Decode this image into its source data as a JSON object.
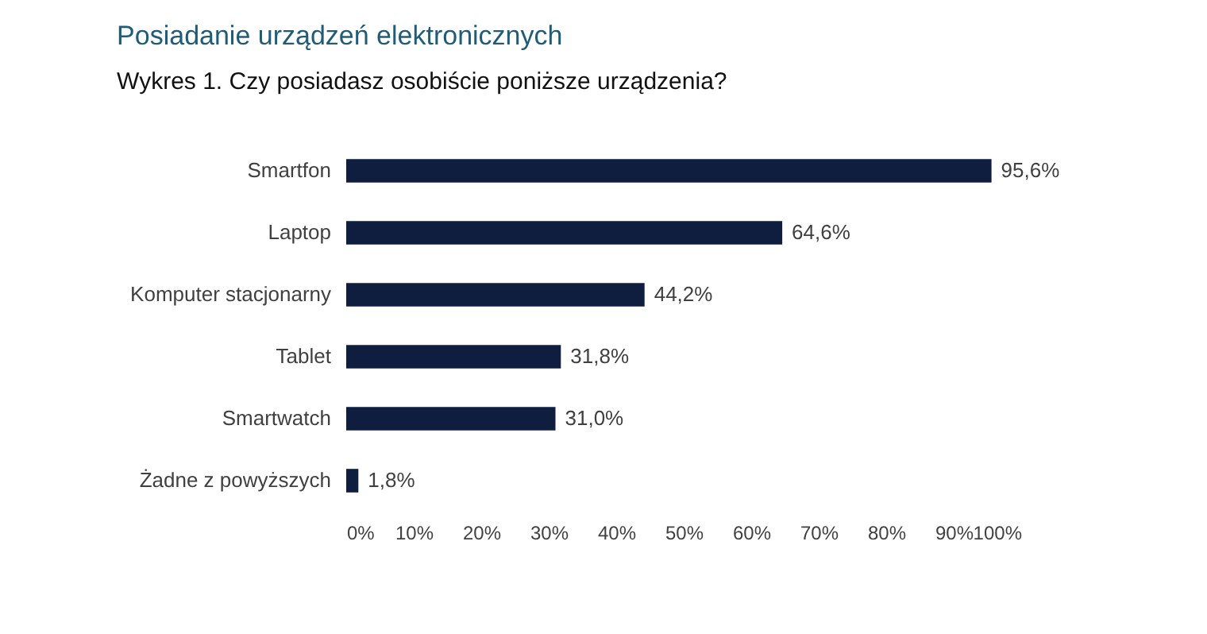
{
  "chart_data": {
    "type": "bar",
    "orientation": "horizontal",
    "title": "Posiadanie urządzeń elektronicznych",
    "subtitle": "Wykres 1. Czy posiadasz osobiście poniższe urządzenia?",
    "categories": [
      "Smartfon",
      "Laptop",
      "Komputer stacjonarny",
      "Tablet",
      "Smartwatch",
      "Żadne z powyższych"
    ],
    "values": [
      95.6,
      64.6,
      44.2,
      31.8,
      31.0,
      1.8
    ],
    "value_labels": [
      "95,6%",
      "64,6%",
      "44,2%",
      "31,8%",
      "31,0%",
      "1,8%"
    ],
    "color": "#0f1d3f",
    "xlim": [
      0,
      100
    ],
    "xticks": [
      {
        "value": 0,
        "label": "0%"
      },
      {
        "value": 10,
        "label": "10%"
      },
      {
        "value": 20,
        "label": "20%"
      },
      {
        "value": 30,
        "label": "30%"
      },
      {
        "value": 40,
        "label": "40%"
      },
      {
        "value": 50,
        "label": "50%"
      },
      {
        "value": 60,
        "label": "60%"
      },
      {
        "value": 70,
        "label": "70%"
      },
      {
        "value": 80,
        "label": "80%"
      },
      {
        "value": 90,
        "label": "90%"
      },
      {
        "value": 100,
        "label": "100%"
      }
    ]
  }
}
